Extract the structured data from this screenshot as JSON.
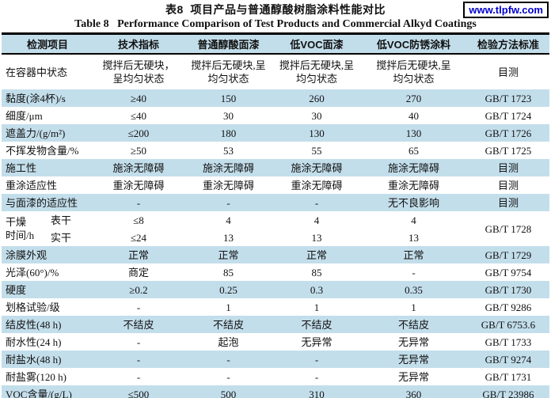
{
  "header": {
    "title_zh": "表8  项目产品与普通醇酸树脂涂料性能对比",
    "title_en": "Table 8   Performance Comparison of Test Products and Commercial Alkyd Coatings",
    "watermark": "www.tlpfw.com",
    "watermark_color": "#0000cc"
  },
  "table": {
    "band_color": "#c3deeb",
    "columns": [
      "检测项目",
      "技术指标",
      "普通醇酸面漆",
      "低VOC面漆",
      "低VOC防锈涂料",
      "检验方法标准"
    ],
    "rows": [
      {
        "label": "在容器中状态",
        "cells": [
          "搅拌后无硬块，\n呈均匀状态",
          "搅拌后无硬块,呈\n均匀状态",
          "搅拌后无硬块,呈\n均匀状态",
          "搅拌后无硬块,呈\n均匀状态",
          "目测"
        ],
        "band": "white",
        "tall": true
      },
      {
        "label": "黏度(涂4杯)/s",
        "cells": [
          "≥40",
          "150",
          "260",
          "270",
          "GB/T 1723"
        ],
        "band": "blue"
      },
      {
        "label": "细度/μm",
        "cells": [
          "≤40",
          "30",
          "30",
          "40",
          "GB/T 1724"
        ],
        "band": "white"
      },
      {
        "label": "遮盖力/(g/m²)",
        "cells": [
          "≤200",
          "180",
          "130",
          "130",
          "GB/T 1726"
        ],
        "band": "blue"
      },
      {
        "label": "不挥发物含量/%",
        "cells": [
          "≥50",
          "53",
          "55",
          "65",
          "GB/T 1725"
        ],
        "band": "white"
      },
      {
        "label": "施工性",
        "cells": [
          "施涂无障碍",
          "施涂无障碍",
          "施涂无障碍",
          "施涂无障碍",
          "目测"
        ],
        "band": "blue"
      },
      {
        "label": "重涂适应性",
        "cells": [
          "重涂无障碍",
          "重涂无障碍",
          "重涂无障碍",
          "重涂无障碍",
          "目测"
        ],
        "band": "white"
      },
      {
        "label": "与面漆的适应性",
        "cells": [
          "-",
          "-",
          "-",
          "无不良影响",
          "目测"
        ],
        "band": "blue"
      },
      {
        "type": "drying",
        "band": "white",
        "label_lines": [
          "干燥",
          "时间/h"
        ],
        "sub_rows": [
          {
            "label": "表干",
            "cells": [
              "≤8",
              "4",
              "4",
              "4"
            ]
          },
          {
            "label": "实干",
            "cells": [
              "≤24",
              "13",
              "13",
              "13"
            ]
          }
        ],
        "method": "GB/T 1728"
      },
      {
        "label": "涂膜外观",
        "cells": [
          "正常",
          "正常",
          "正常",
          "正常",
          "GB/T 1729"
        ],
        "band": "blue"
      },
      {
        "label": "光泽(60°)/%",
        "cells": [
          "商定",
          "85",
          "85",
          "-",
          "GB/T 9754"
        ],
        "band": "white"
      },
      {
        "label": "硬度",
        "cells": [
          "≥0.2",
          "0.25",
          "0.3",
          "0.35",
          "GB/T 1730"
        ],
        "band": "blue"
      },
      {
        "label": "划格试验/级",
        "cells": [
          "-",
          "1",
          "1",
          "1",
          "GB/T 9286"
        ],
        "band": "white"
      },
      {
        "label": "结皮性(48 h)",
        "cells": [
          "不结皮",
          "不结皮",
          "不结皮",
          "不结皮",
          "GB/T 6753.6"
        ],
        "band": "blue"
      },
      {
        "label": "耐水性(24 h)",
        "cells": [
          "-",
          "起泡",
          "无异常",
          "无异常",
          "GB/T 1733"
        ],
        "band": "white"
      },
      {
        "label": "耐盐水(48 h)",
        "cells": [
          "-",
          "-",
          "-",
          "无异常",
          "GB/T 9274"
        ],
        "band": "blue"
      },
      {
        "label": "耐盐雾(120 h)",
        "cells": [
          "-",
          "-",
          "-",
          "无异常",
          "GB/T 1731"
        ],
        "band": "white"
      },
      {
        "label": "VOC含量/(g/L)",
        "cells": [
          "≤500",
          "500",
          "310",
          "360",
          "GB/T 23986"
        ],
        "band": "blue"
      }
    ]
  }
}
